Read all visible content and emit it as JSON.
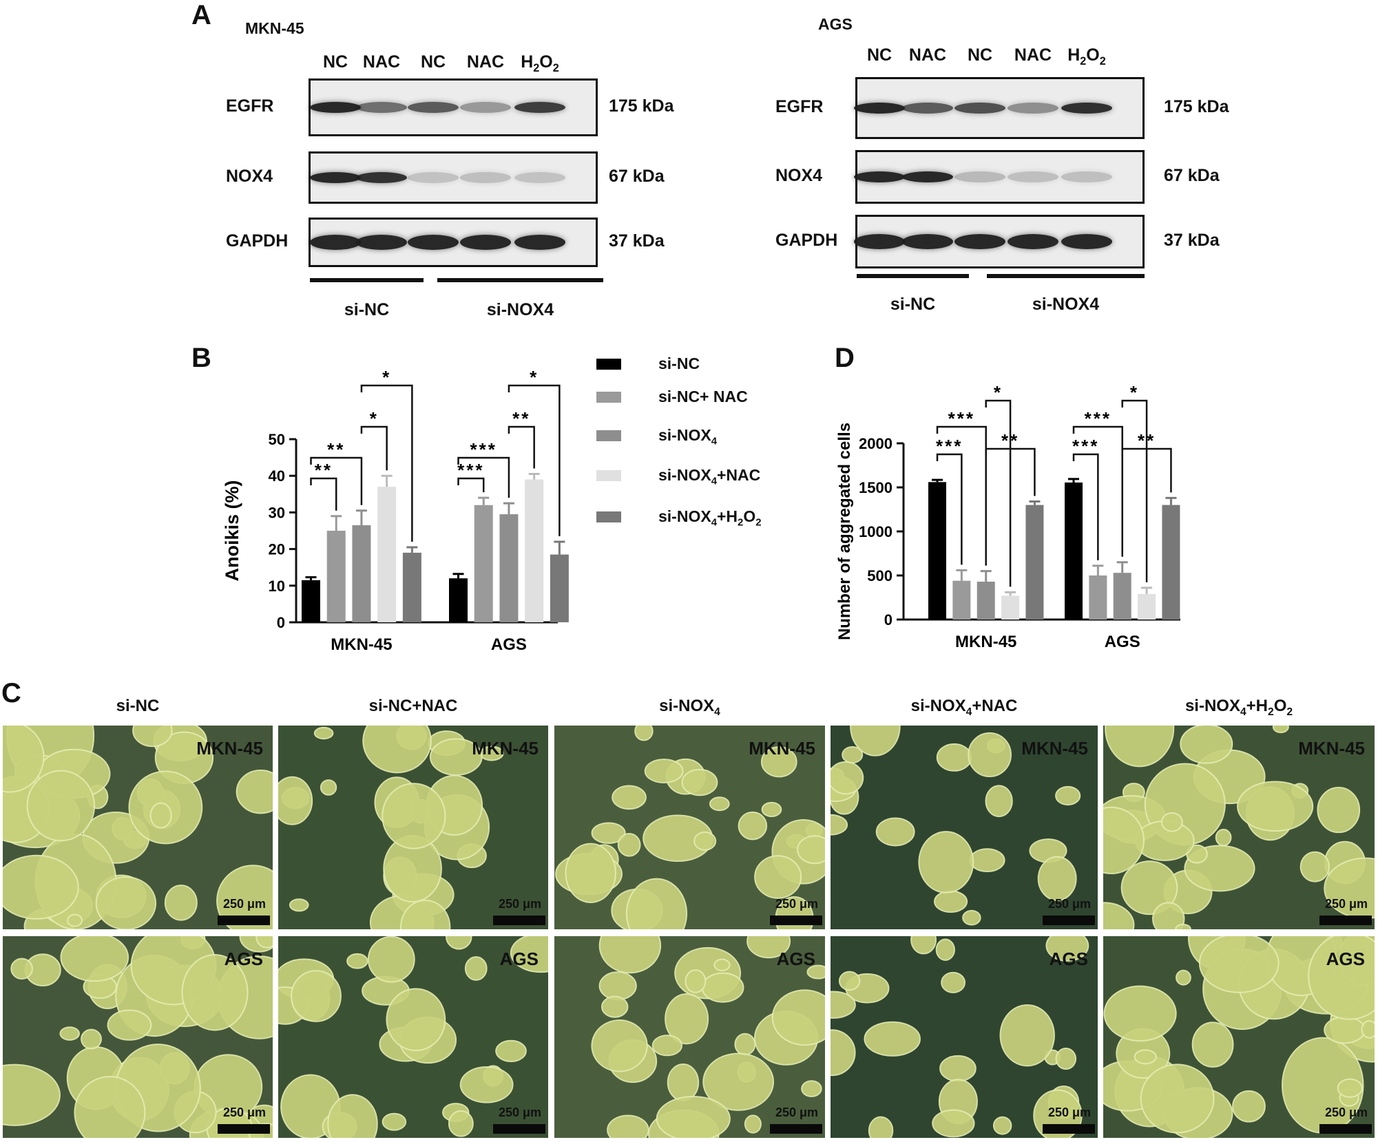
{
  "panel_a": {
    "letter": "A",
    "left": {
      "cell_line": "MKN-45",
      "lanes": [
        "NC",
        "NAC",
        "NC",
        "NAC",
        "H2O2"
      ],
      "rows": [
        {
          "protein": "EGFR",
          "size": "175 kDa"
        },
        {
          "protein": "NOX4",
          "size": "67 kDa"
        },
        {
          "protein": "GAPDH",
          "size": "37 kDa"
        }
      ],
      "groups": [
        "si-NC",
        "si-NOX4"
      ]
    },
    "right": {
      "cell_line": "AGS",
      "lanes": [
        "NC",
        "NAC",
        "NC",
        "NAC",
        "H2O2"
      ],
      "rows": [
        {
          "protein": "EGFR",
          "size": "175 kDa"
        },
        {
          "protein": "NOX4",
          "size": "67 kDa"
        },
        {
          "protein": "GAPDH",
          "size": "37 kDa"
        }
      ],
      "groups": [
        "si-NC",
        "si-NOX4"
      ]
    }
  },
  "panel_b": {
    "letter": "B"
  },
  "panel_c": {
    "letter": "C",
    "columns": [
      "si-NC",
      "si-NC+NAC",
      "si-NOX4",
      "si-NOX4+NAC",
      "si-NOX4+H2O2"
    ],
    "rows": [
      "MKN-45",
      "AGS"
    ],
    "scale": "250 μm"
  },
  "panel_d": {
    "letter": "D"
  },
  "legend": {
    "entries": [
      {
        "label": "si-NC",
        "color": "#000000"
      },
      {
        "label": "si-NC+ NAC",
        "color": "#9a9a9a"
      },
      {
        "label": "si-NOX4",
        "color": "#8e8e8e"
      },
      {
        "label": "si-NOX4+NAC",
        "color": "#e0e0e0"
      },
      {
        "label": "si-NOX4+H2O2",
        "color": "#787878"
      }
    ]
  },
  "chart_data": [
    {
      "type": "bar",
      "panel": "B",
      "title": "",
      "xlabel": "",
      "ylabel": "Anoikis (%)",
      "ylim": [
        0,
        50
      ],
      "yticks": [
        0,
        10,
        20,
        30,
        40,
        50
      ],
      "categories": [
        "MKN-45",
        "AGS"
      ],
      "series": [
        {
          "name": "si-NC",
          "values": [
            11.5,
            12
          ],
          "errors": [
            0.8,
            1.2
          ]
        },
        {
          "name": "si-NC+ NAC",
          "values": [
            25,
            32
          ],
          "errors": [
            4,
            2
          ]
        },
        {
          "name": "si-NOX4",
          "values": [
            26.5,
            29.5
          ],
          "errors": [
            4,
            3
          ]
        },
        {
          "name": "si-NOX4+NAC",
          "values": [
            37,
            39
          ],
          "errors": [
            3,
            1.5
          ]
        },
        {
          "name": "si-NOX4+H2O2",
          "values": [
            19,
            18.5
          ],
          "errors": [
            1.5,
            3.5
          ]
        }
      ],
      "annotations": [
        {
          "group": 0,
          "from": 0,
          "to": 1,
          "text": "**"
        },
        {
          "group": 0,
          "from": 0,
          "to": 2,
          "text": "**"
        },
        {
          "group": 0,
          "from": 2,
          "to": 3,
          "text": "*"
        },
        {
          "group": 0,
          "from": 2,
          "to": 4,
          "text": "*"
        },
        {
          "group": 1,
          "from": 0,
          "to": 1,
          "text": "***"
        },
        {
          "group": 1,
          "from": 0,
          "to": 2,
          "text": "***"
        },
        {
          "group": 1,
          "from": 2,
          "to": 3,
          "text": "**"
        },
        {
          "group": 1,
          "from": 2,
          "to": 4,
          "text": "*"
        }
      ]
    },
    {
      "type": "bar",
      "panel": "D",
      "title": "",
      "xlabel": "",
      "ylabel": "Number of aggregated cells",
      "ylim": [
        0,
        2000
      ],
      "yticks": [
        0,
        500,
        1000,
        1500,
        2000
      ],
      "categories": [
        "MKN-45",
        "AGS"
      ],
      "series": [
        {
          "name": "si-NC",
          "values": [
            1560,
            1555
          ],
          "errors": [
            25,
            40
          ]
        },
        {
          "name": "si-NC+ NAC",
          "values": [
            440,
            500
          ],
          "errors": [
            120,
            110
          ]
        },
        {
          "name": "si-NOX4",
          "values": [
            430,
            530
          ],
          "errors": [
            120,
            120
          ]
        },
        {
          "name": "si-NOX4+NAC",
          "values": [
            270,
            290
          ],
          "errors": [
            40,
            70
          ]
        },
        {
          "name": "si-NOX4+H2O2",
          "values": [
            1300,
            1300
          ],
          "errors": [
            40,
            80
          ]
        }
      ],
      "annotations": [
        {
          "group": 0,
          "from": 0,
          "to": 1,
          "text": "***"
        },
        {
          "group": 0,
          "from": 0,
          "to": 2,
          "text": "***"
        },
        {
          "group": 0,
          "from": 2,
          "to": 3,
          "text": "*"
        },
        {
          "group": 0,
          "from": 2,
          "to": 4,
          "text": "**"
        },
        {
          "group": 1,
          "from": 0,
          "to": 1,
          "text": "***"
        },
        {
          "group": 1,
          "from": 0,
          "to": 2,
          "text": "***"
        },
        {
          "group": 1,
          "from": 2,
          "to": 3,
          "text": "*"
        },
        {
          "group": 1,
          "from": 2,
          "to": 4,
          "text": "**"
        }
      ]
    }
  ]
}
